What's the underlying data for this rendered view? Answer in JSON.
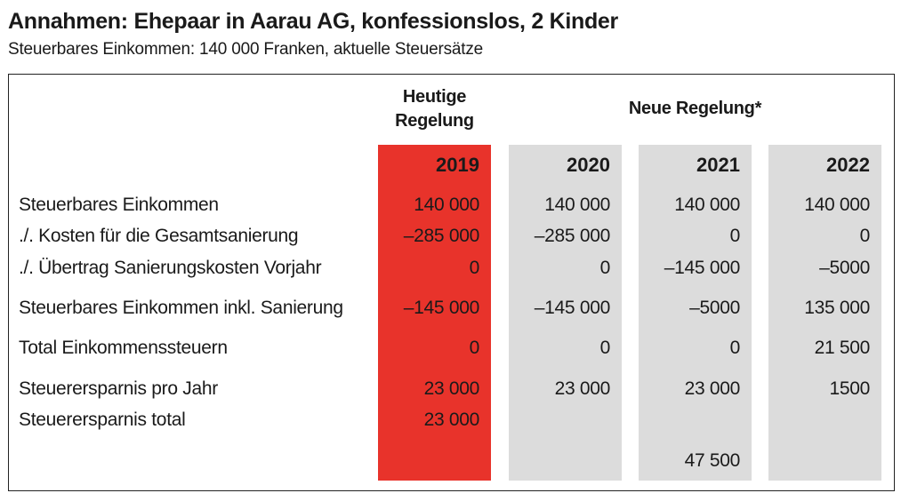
{
  "title": "Annahmen: Ehepaar in Aarau AG, konfessionslos, 2 Kinder",
  "subtitle": "Steuerbares Einkommen: 140 000 Franken, aktuelle Steuersätze",
  "headers": {
    "current": [
      "Heutige",
      "Regelung"
    ],
    "new": "Neue Regelung*"
  },
  "colors": {
    "current_column": "#e8332b",
    "new_columns": "#dcdcdc"
  },
  "years": [
    "2019",
    "2020",
    "2021",
    "2022"
  ],
  "rows": [
    {
      "label": "Steuerbares Einkommen",
      "values": [
        "140 000",
        "140 000",
        "140 000",
        "140 000"
      ]
    },
    {
      "label": "./. Kosten für die Gesamtsanierung",
      "values": [
        "–285 000",
        "–285 000",
        "0",
        "0"
      ]
    },
    {
      "label": "./. Übertrag Sanierungskosten Vorjahr",
      "values": [
        "0",
        "0",
        "–145 000",
        "–5000"
      ]
    },
    {
      "label": "Steuerbares Einkommen inkl. Sanierung",
      "values": [
        "–145 000",
        "–145 000",
        "–5000",
        "135 000"
      ]
    },
    {
      "label": "Total Einkommenssteuern",
      "values": [
        "0",
        "0",
        "0",
        "21 500"
      ]
    },
    {
      "label": "Steuerersparnis pro Jahr",
      "values": [
        "23 000",
        "23 000",
        "23 000",
        "1500"
      ]
    },
    {
      "label": "Steuerersparnis total",
      "values": [
        "23 000",
        "",
        "",
        ""
      ]
    }
  ],
  "new_total": "47 500"
}
